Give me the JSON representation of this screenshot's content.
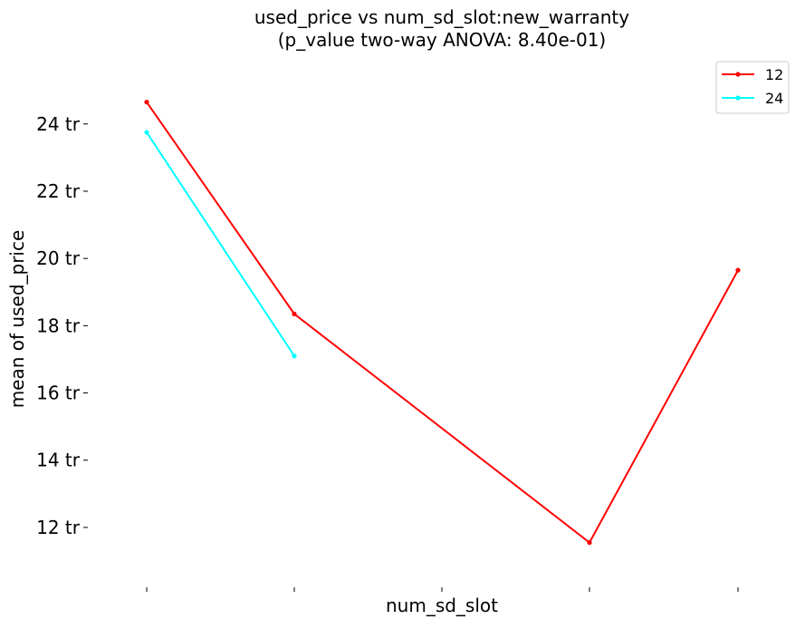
{
  "chart_data": {
    "type": "line",
    "title": "used_price vs num_sd_slot:new_warranty",
    "subtitle": "(p_value two-way ANOVA: 8.40e-01)",
    "xlabel": "num_sd_slot",
    "ylabel": "mean of used_price",
    "x_categories": [
      "",
      "",
      "",
      "",
      ""
    ],
    "ylim": [
      10.3,
      25.8
    ],
    "y_ticks": [
      12,
      14,
      16,
      18,
      20,
      22,
      24
    ],
    "y_tick_labels": [
      "12 tr",
      "14 tr",
      "16 tr",
      "18 tr",
      "20 tr",
      "22 tr",
      "24 tr"
    ],
    "grid": false,
    "legend_position": "top-right",
    "series": [
      {
        "name": "12",
        "color": "#ff0000",
        "x_index": [
          0,
          1,
          3,
          4
        ],
        "values": [
          24.65,
          18.35,
          11.55,
          19.65
        ]
      },
      {
        "name": "24",
        "color": "#00ffff",
        "x_index": [
          0,
          1
        ],
        "values": [
          23.75,
          17.1
        ]
      }
    ]
  }
}
